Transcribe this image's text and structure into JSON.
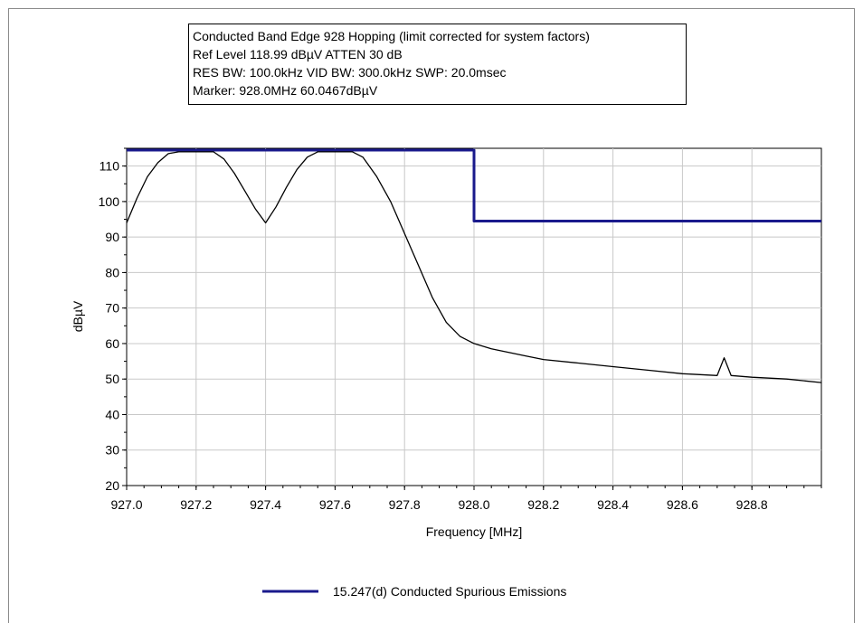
{
  "info": {
    "title": "Conducted Band Edge 928 Hopping (limit corrected for system factors)",
    "line2": "Ref Level 118.99 dBµV    ATTEN 30 dB",
    "line3": "RES BW: 100.0kHz  VID BW: 300.0kHz  SWP: 20.0msec",
    "line4": "Marker: 928.0MHz  60.0467dBµV"
  },
  "chart_data": {
    "type": "line",
    "xlabel": "Frequency [MHz]",
    "ylabel": "dBµV",
    "xlim": [
      927.0,
      929.0
    ],
    "ylim": [
      20,
      115
    ],
    "x_ticks": [
      "927.0",
      "927.2",
      "927.4",
      "927.6",
      "927.8",
      "928.0",
      "928.2",
      "928.4",
      "928.6",
      "928.8"
    ],
    "x_tick_values": [
      927.0,
      927.2,
      927.4,
      927.6,
      927.8,
      928.0,
      928.2,
      928.4,
      928.6,
      928.8
    ],
    "y_ticks": [
      20,
      30,
      40,
      50,
      60,
      70,
      80,
      90,
      100,
      110
    ],
    "grid": true,
    "legend_position": "bottom",
    "series": [
      {
        "name": "15.247(d) Conducted Spurious Emissions",
        "color": "#1a1a8c",
        "x": [
          927.0,
          928.0,
          928.0,
          929.0
        ],
        "y": [
          114.5,
          114.5,
          94.5,
          94.5
        ]
      },
      {
        "color": "#000000",
        "x": [
          927.0,
          927.03,
          927.06,
          927.09,
          927.12,
          927.15,
          927.2,
          927.25,
          927.28,
          927.31,
          927.34,
          927.37,
          927.4,
          927.43,
          927.46,
          927.49,
          927.52,
          927.55,
          927.6,
          927.65,
          927.68,
          927.72,
          927.76,
          927.8,
          927.84,
          927.88,
          927.92,
          927.96,
          928.0,
          928.05,
          928.1,
          928.15,
          928.2,
          928.3,
          928.4,
          928.5,
          928.6,
          928.7,
          928.72,
          928.74,
          928.8,
          928.9,
          929.0
        ],
        "y": [
          94.0,
          101.0,
          107.0,
          111.0,
          113.5,
          114.0,
          114.0,
          114.0,
          112.0,
          108.0,
          103.0,
          98.0,
          94.0,
          98.5,
          104.0,
          109.0,
          112.5,
          114.0,
          114.0,
          114.0,
          112.5,
          107.0,
          100.0,
          91.0,
          82.0,
          73.0,
          66.0,
          62.0,
          60.0,
          58.5,
          57.5,
          56.5,
          55.5,
          54.5,
          53.5,
          52.5,
          51.5,
          51.0,
          56.0,
          51.0,
          50.5,
          50.0,
          49.0
        ]
      }
    ]
  }
}
